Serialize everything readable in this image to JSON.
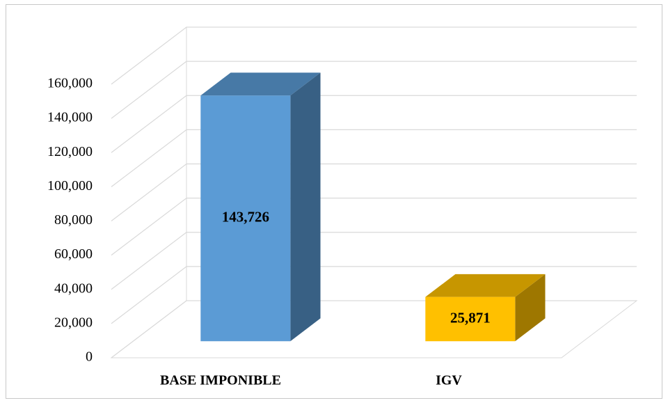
{
  "chart_data": {
    "type": "bar3d",
    "categories": [
      "BASE IMPONIBLE",
      "IGV"
    ],
    "values": [
      143726,
      25871
    ],
    "value_labels": [
      "143,726",
      "25,871"
    ],
    "colors": [
      "#5b9bd5",
      "#ffc000"
    ],
    "ylim": [
      0,
      160000
    ],
    "yticks": [
      0,
      {
        "value": 20000,
        "label": "20,000"
      },
      {
        "value": 40000,
        "label": "40,000"
      },
      {
        "value": 60000,
        "label": "60,000"
      },
      {
        "value": 80000,
        "label": "80,000"
      },
      {
        "value": 100000,
        "label": "100,000"
      },
      {
        "value": 120000,
        "label": "120,000"
      },
      {
        "value": 140000,
        "label": "140,000"
      },
      {
        "value": 160000,
        "label": "160,000"
      }
    ],
    "grid": true
  }
}
